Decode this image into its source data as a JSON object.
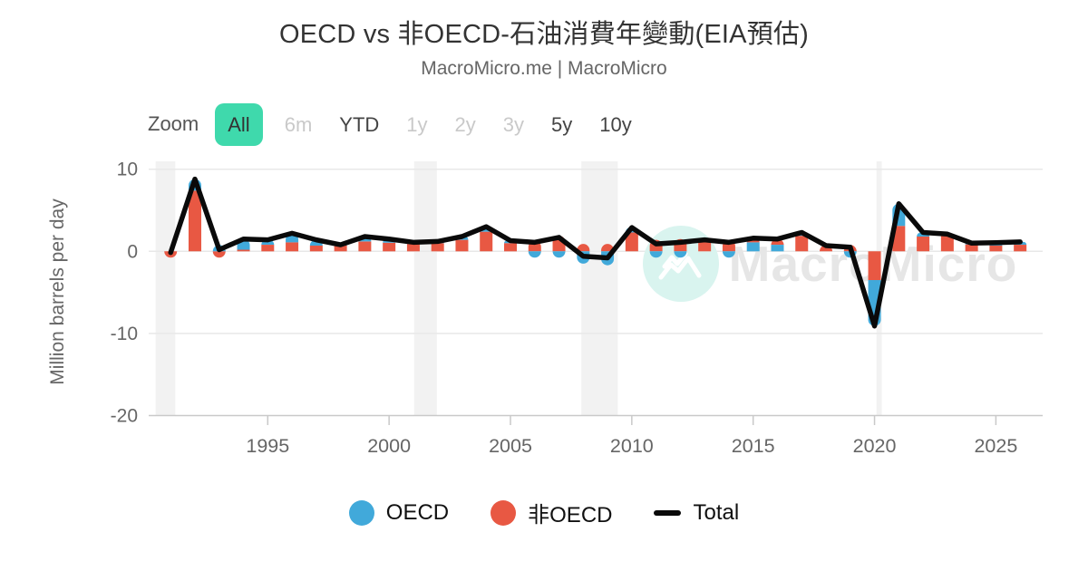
{
  "header": {
    "title": "OECD vs 非OECD-石油消費年變動(EIA預估)",
    "subtitle": "MacroMicro.me | MacroMicro"
  },
  "toolbar": {
    "zoom_label": "Zoom",
    "active_bg": "#3fd9ac",
    "buttons": [
      {
        "label": "All",
        "state": "active"
      },
      {
        "label": "6m",
        "state": "disabled"
      },
      {
        "label": "YTD",
        "state": "enabled"
      },
      {
        "label": "1y",
        "state": "disabled"
      },
      {
        "label": "2y",
        "state": "disabled"
      },
      {
        "label": "3y",
        "state": "disabled"
      },
      {
        "label": "5y",
        "state": "enabled"
      },
      {
        "label": "10y",
        "state": "enabled"
      }
    ]
  },
  "watermark": {
    "text": "MacroMicro",
    "logo": "macromicro-mountain-logo",
    "circle_color": "#d9f4ef",
    "text_color": "#e6e6e6"
  },
  "chart_data": {
    "type": "bar",
    "subtype": "stacked-columns-with-total-line",
    "title": "OECD vs 非OECD-石油消費年變動(EIA預估)",
    "xlabel": "",
    "ylabel": "Million barrels per day",
    "ylim": [
      -20,
      11
    ],
    "yticks": [
      10,
      0,
      -10,
      -20
    ],
    "xticks": [
      1995,
      2000,
      2005,
      2010,
      2015,
      2020,
      2025
    ],
    "grid": "horizontal-only",
    "legend_position": "bottom-center",
    "x": [
      1991,
      1992,
      1993,
      1994,
      1995,
      1996,
      1997,
      1998,
      1999,
      2000,
      2001,
      2002,
      2003,
      2004,
      2005,
      2006,
      2007,
      2008,
      2009,
      2010,
      2011,
      2012,
      2013,
      2014,
      2015,
      2016,
      2017,
      2018,
      2019,
      2020,
      2021,
      2022,
      2023,
      2024,
      2025,
      2026
    ],
    "series": [
      {
        "name": "OECD",
        "type": "column",
        "color": "#41a9da",
        "values": [
          0.0,
          1.4,
          0.5,
          1.3,
          0.6,
          1.1,
          0.7,
          0.1,
          0.6,
          0.45,
          0.2,
          0.2,
          0.4,
          0.6,
          0.3,
          -0.2,
          -0.2,
          -1.5,
          -1.7,
          0.6,
          -0.5,
          -0.4,
          0.1,
          -0.3,
          1.1,
          0.8,
          0.4,
          0.05,
          -0.15,
          -5.6,
          2.7,
          0.5,
          0.1,
          0.15,
          0.35,
          0.35
        ]
      },
      {
        "name": "非OECD",
        "type": "column",
        "color": "#e85843",
        "values": [
          -0.15,
          7.4,
          -0.3,
          0.2,
          0.8,
          1.1,
          0.7,
          0.7,
          1.2,
          1.05,
          0.9,
          1.0,
          1.4,
          2.4,
          1.0,
          1.3,
          1.9,
          0.9,
          0.9,
          2.3,
          1.4,
          1.5,
          1.3,
          1.4,
          0.5,
          0.7,
          1.9,
          0.65,
          0.65,
          -3.5,
          3.1,
          1.8,
          2.0,
          0.85,
          0.7,
          0.8
        ]
      },
      {
        "name": "Total",
        "type": "line",
        "color": "#0a0a0a",
        "values": [
          -0.15,
          8.8,
          0.2,
          1.5,
          1.4,
          2.2,
          1.4,
          0.8,
          1.8,
          1.5,
          1.1,
          1.2,
          1.8,
          3.0,
          1.3,
          1.1,
          1.7,
          -0.6,
          -0.8,
          2.9,
          0.9,
          1.1,
          1.4,
          1.1,
          1.6,
          1.5,
          2.3,
          0.7,
          0.5,
          -9.1,
          5.8,
          2.3,
          2.1,
          1.0,
          1.05,
          1.15
        ]
      }
    ],
    "stack_blue_first_years": [
      2015,
      2016
    ],
    "recession_bands_x": [
      [
        1990.38,
        1991.19
      ],
      [
        2001.03,
        2001.97
      ],
      [
        2007.92,
        2009.42
      ],
      [
        2020.08,
        2020.3
      ]
    ],
    "legend": [
      {
        "label": "OECD",
        "marker": "circle",
        "color": "#41a9da"
      },
      {
        "label": "非OECD",
        "marker": "circle",
        "color": "#e85843"
      },
      {
        "label": "Total",
        "marker": "line",
        "color": "#0a0a0a"
      }
    ]
  }
}
